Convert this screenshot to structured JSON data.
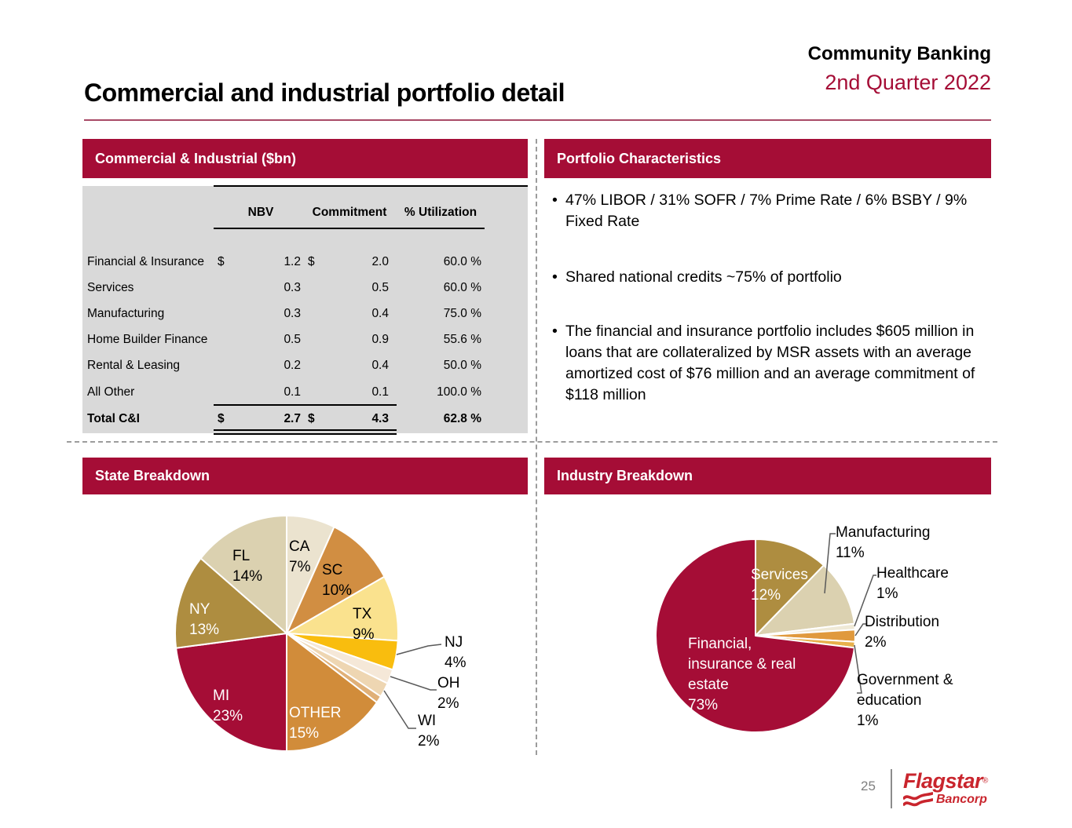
{
  "page": {
    "title": "Commercial and industrial portfolio detail",
    "program": "Community Banking",
    "period": "2nd Quarter 2022",
    "page_number": "25",
    "brand": {
      "name": "Flagstar",
      "reg_mark": "®",
      "sub": "Bancorp"
    }
  },
  "colors": {
    "accent_red": "#a50d36",
    "logo_red": "#c9252d",
    "table_bg": "#d9d9d9"
  },
  "panels": {
    "ci": {
      "title": "Commercial & Industrial ($bn)"
    },
    "portfolio": {
      "title": "Portfolio Characteristics",
      "bullets": [
        "47% LIBOR / 31% SOFR / 7% Prime Rate / 6% BSBY / 9% Fixed Rate",
        "Shared national credits ~75% of portfolio",
        "The financial and insurance portfolio includes $605 million in loans that are collateralized by MSR assets with an average amortized cost of $76 million and an average commitment of $118 million"
      ]
    },
    "state": {
      "title": "State Breakdown"
    },
    "industry": {
      "title": "Industry Breakdown"
    }
  },
  "table": {
    "headers": [
      "NBV",
      "Commitment",
      "% Utilization"
    ],
    "rows": [
      {
        "label": "Financial & Insurance",
        "d1": "$",
        "nbv": "1.2",
        "d2": "$",
        "commitment": "2.0",
        "utilization": "60.0 %"
      },
      {
        "label": "Services",
        "d1": "",
        "nbv": "0.3",
        "d2": "",
        "commitment": "0.5",
        "utilization": "60.0 %"
      },
      {
        "label": "Manufacturing",
        "d1": "",
        "nbv": "0.3",
        "d2": "",
        "commitment": "0.4",
        "utilization": "75.0 %"
      },
      {
        "label": "Home Builder Finance",
        "d1": "",
        "nbv": "0.5",
        "d2": "",
        "commitment": "0.9",
        "utilization": "55.6 %"
      },
      {
        "label": "Rental & Leasing",
        "d1": "",
        "nbv": "0.2",
        "d2": "",
        "commitment": "0.4",
        "utilization": "50.0 %"
      },
      {
        "label": "All Other",
        "d1": "",
        "nbv": "0.1",
        "d2": "",
        "commitment": "0.1",
        "utilization": "100.0 %"
      }
    ],
    "total": {
      "label": "Total C&I",
      "d1": "$",
      "nbv": "2.7",
      "d2": "$",
      "commitment": "4.3",
      "utilization": "62.8 %"
    }
  },
  "chart_data": [
    {
      "type": "pie",
      "title": "State Breakdown",
      "start_angle_deg": 0,
      "direction": "clockwise",
      "slices": [
        {
          "label": "CA",
          "value": 7,
          "color": "#ebe3cf",
          "text": "CA\n7%"
        },
        {
          "label": "SC",
          "value": 10,
          "color": "#d18e42",
          "text": "SC\n10%"
        },
        {
          "label": "TX",
          "value": 9,
          "color": "#fae28e",
          "text": "TX\n9%"
        },
        {
          "label": "NJ",
          "value": 4,
          "color": "#f9bd0e",
          "text": "NJ\n4%"
        },
        {
          "label": "OH",
          "value": 2,
          "color": "#f5e8d8",
          "text": "OH\n2%"
        },
        {
          "label": "WI",
          "value": 2,
          "color": "#eed6b2",
          "text": "WI\n2%"
        },
        {
          "label": "",
          "value": 1,
          "color": "#e0b078",
          "text": ""
        },
        {
          "label": "OTHER",
          "value": 15,
          "color": "#d18c3a",
          "text": "OTHER\n15%"
        },
        {
          "label": "MI",
          "value": 23,
          "color": "#a50d36",
          "text": "MI\n23%"
        },
        {
          "label": "NY",
          "value": 13,
          "color": "#ae8d40",
          "text": "NY\n13%"
        },
        {
          "label": "FL",
          "value": 14,
          "color": "#dbd1b0",
          "text": "FL\n14%"
        }
      ]
    },
    {
      "type": "pie",
      "title": "Industry Breakdown",
      "start_angle_deg": 0,
      "direction": "clockwise",
      "slices": [
        {
          "label": "Services",
          "value": 12,
          "color": "#ae8d40",
          "text": "Services\n12%"
        },
        {
          "label": "Manufacturing",
          "value": 11,
          "color": "#dbd1b0",
          "text": "Manufacturing\n11%"
        },
        {
          "label": "Healthcare",
          "value": 1,
          "color": "#efe9d6",
          "text": "Healthcare\n1%"
        },
        {
          "label": "Distribution",
          "value": 2,
          "color": "#e0993d",
          "text": "Distribution\n2%"
        },
        {
          "label": "Government & education",
          "value": 1,
          "color": "#e7b04c",
          "text": "Government &\neducation\n1%"
        },
        {
          "label": "Financial, insurance & real estate",
          "value": 73,
          "color": "#a50d36",
          "text": "Financial,\ninsurance & real\nestate\n73%"
        }
      ]
    }
  ]
}
